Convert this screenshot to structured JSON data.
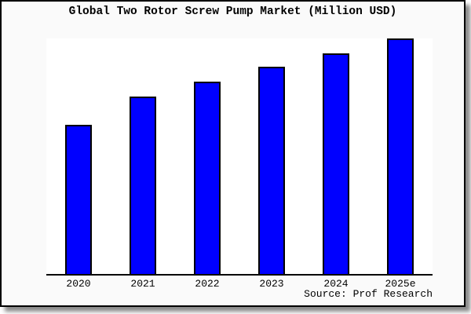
{
  "colors": {
    "bar_fill": "#0000ff",
    "bar_border": "#000000",
    "card_background": "#fafafa",
    "plot_background": "#ffffff",
    "axis": "#000000",
    "shadow": "#8a8a8a"
  },
  "chart_data": {
    "type": "bar",
    "title": "Global Two Rotor Screw Pump Market (Million USD)",
    "categories": [
      "2020",
      "2021",
      "2022",
      "2023",
      "2024",
      "2025e"
    ],
    "values": [
      190,
      226,
      245,
      264,
      281,
      300
    ],
    "values_note": "relative bar heights in pixels; chart shows no y-axis, gridlines or data labels",
    "xlabel": "",
    "ylabel": "",
    "y_axis_visible": false,
    "grid": false,
    "legend": "none",
    "source": "Source: Prof Research"
  }
}
